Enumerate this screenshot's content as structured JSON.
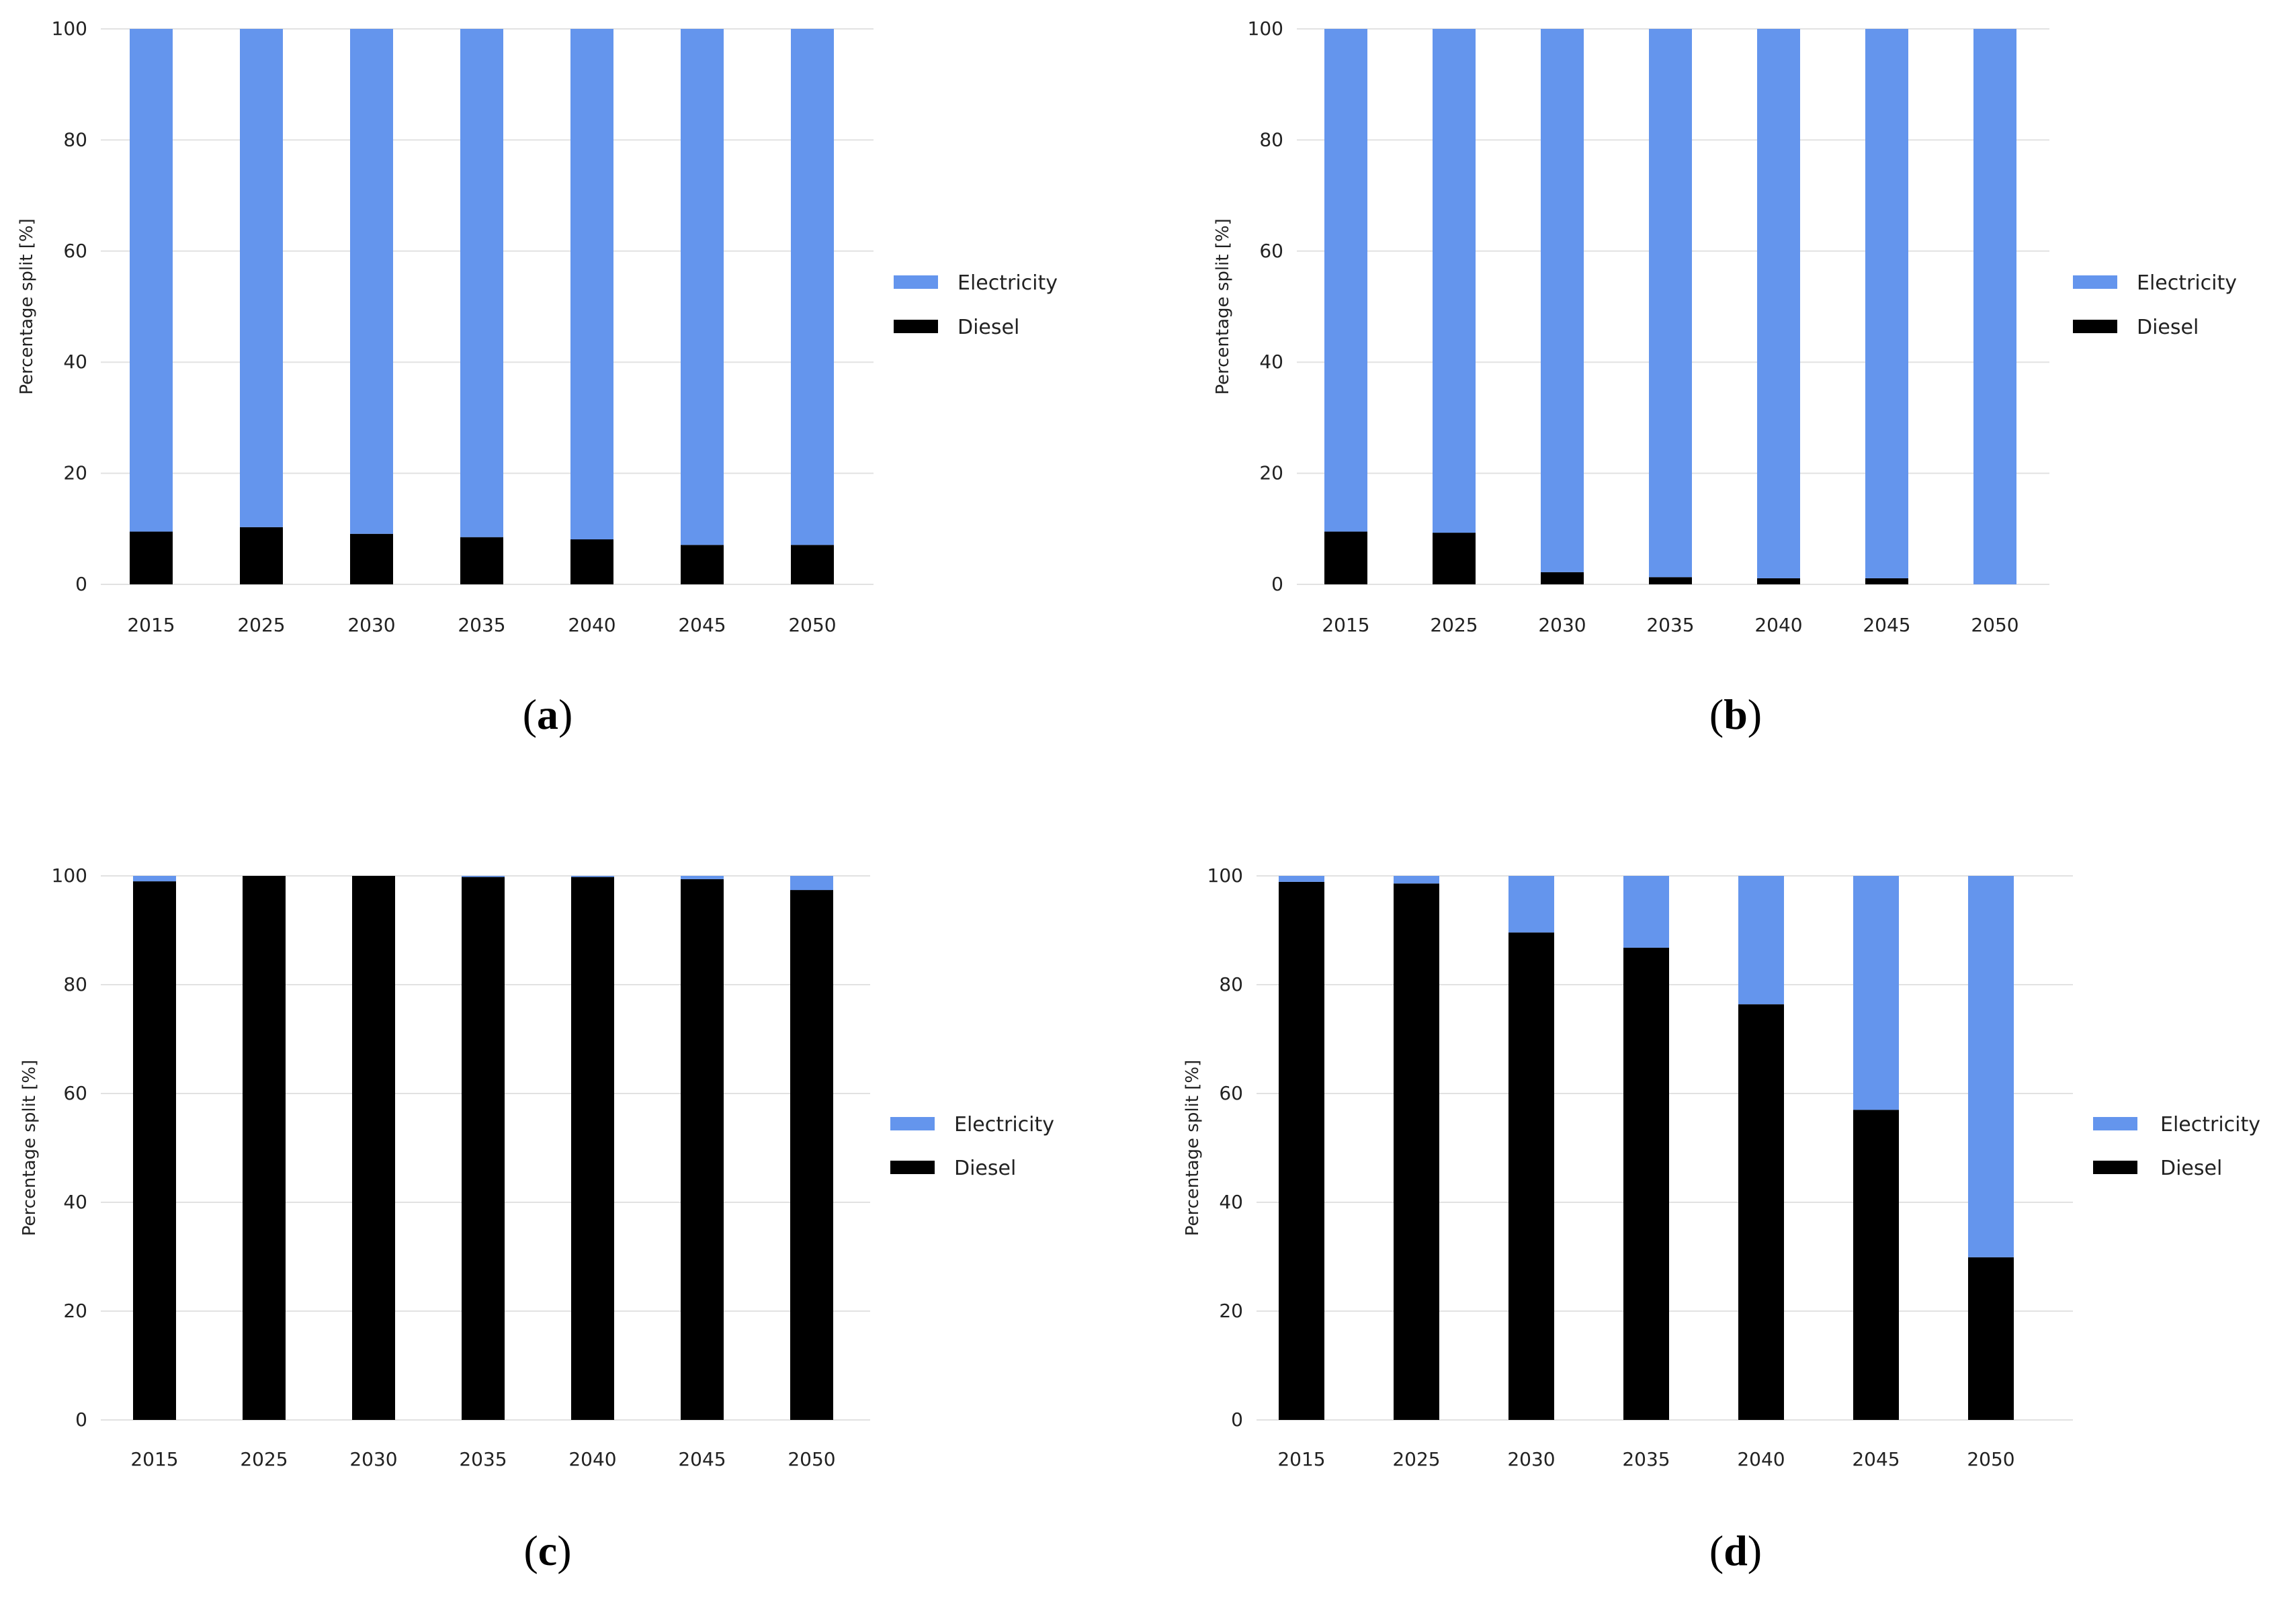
{
  "y_axis_label": "Percentage split [%]",
  "colors": {
    "electricity": "#6495ED",
    "diesel": "#000000"
  },
  "chart_data": [
    {
      "panel": "a",
      "type": "bar",
      "stacked": true,
      "categories": [
        "2015",
        "2025",
        "2030",
        "2035",
        "2040",
        "2045",
        "2050"
      ],
      "series": [
        {
          "name": "Diesel",
          "values": [
            9.5,
            10.3,
            9.1,
            8.5,
            8.1,
            7.1,
            7.1
          ]
        },
        {
          "name": "Electricity",
          "values": [
            90.5,
            89.7,
            90.9,
            91.5,
            91.9,
            92.9,
            92.9
          ]
        }
      ],
      "legend": [
        "Electricity",
        "Diesel"
      ],
      "legend_position": "right",
      "ylabel": "Percentage split [%]",
      "ylim": [
        0,
        100
      ],
      "yticks": [
        "0",
        "20",
        "40",
        "60",
        "80",
        "100"
      ],
      "grid": true,
      "caption_open": "(",
      "caption_letter": "a",
      "caption_close": ")"
    },
    {
      "panel": "b",
      "type": "bar",
      "stacked": true,
      "categories": [
        "2015",
        "2025",
        "2030",
        "2035",
        "2040",
        "2045",
        "2050"
      ],
      "series": [
        {
          "name": "Diesel",
          "values": [
            9.5,
            9.3,
            2.2,
            1.3,
            1.1,
            1.1,
            0
          ]
        },
        {
          "name": "Electricity",
          "values": [
            90.5,
            90.7,
            97.8,
            98.7,
            98.9,
            98.9,
            100
          ]
        }
      ],
      "legend": [
        "Electricity",
        "Diesel"
      ],
      "legend_position": "right",
      "ylabel": "Percentage split [%]",
      "ylim": [
        0,
        100
      ],
      "yticks": [
        "0",
        "20",
        "40",
        "60",
        "80",
        "100"
      ],
      "grid": true,
      "caption_open": "(",
      "caption_letter": "b",
      "caption_close": ")"
    },
    {
      "panel": "c",
      "type": "bar",
      "stacked": true,
      "categories": [
        "2015",
        "2025",
        "2030",
        "2035",
        "2040",
        "2045",
        "2050"
      ],
      "series": [
        {
          "name": "Diesel",
          "values": [
            99.0,
            100,
            100,
            99.8,
            99.8,
            99.4,
            97.4
          ]
        },
        {
          "name": "Electricity",
          "values": [
            1.0,
            0,
            0,
            0.2,
            0.2,
            0.6,
            2.6
          ]
        }
      ],
      "legend": [
        "Electricity",
        "Diesel"
      ],
      "legend_position": "right",
      "ylabel": "Percentage split [%]",
      "ylim": [
        0,
        100
      ],
      "yticks": [
        "0",
        "20",
        "40",
        "60",
        "80",
        "100"
      ],
      "grid": true,
      "caption_open": "(",
      "caption_letter": "c",
      "caption_close": ")"
    },
    {
      "panel": "d",
      "type": "bar",
      "stacked": true,
      "categories": [
        "2015",
        "2025",
        "2030",
        "2035",
        "2040",
        "2045",
        "2050"
      ],
      "series": [
        {
          "name": "Diesel",
          "values": [
            98.9,
            98.6,
            89.6,
            86.8,
            76.4,
            57.0,
            29.9
          ]
        },
        {
          "name": "Electricity",
          "values": [
            1.1,
            1.4,
            10.4,
            13.2,
            23.6,
            43.0,
            70.1
          ]
        }
      ],
      "legend": [
        "Electricity",
        "Diesel"
      ],
      "legend_position": "right",
      "ylabel": "Percentage split [%]",
      "ylim": [
        0,
        100
      ],
      "yticks": [
        "0",
        "20",
        "40",
        "60",
        "80",
        "100"
      ],
      "grid": true,
      "caption_open": "(",
      "caption_letter": "d",
      "caption_close": ")"
    }
  ]
}
